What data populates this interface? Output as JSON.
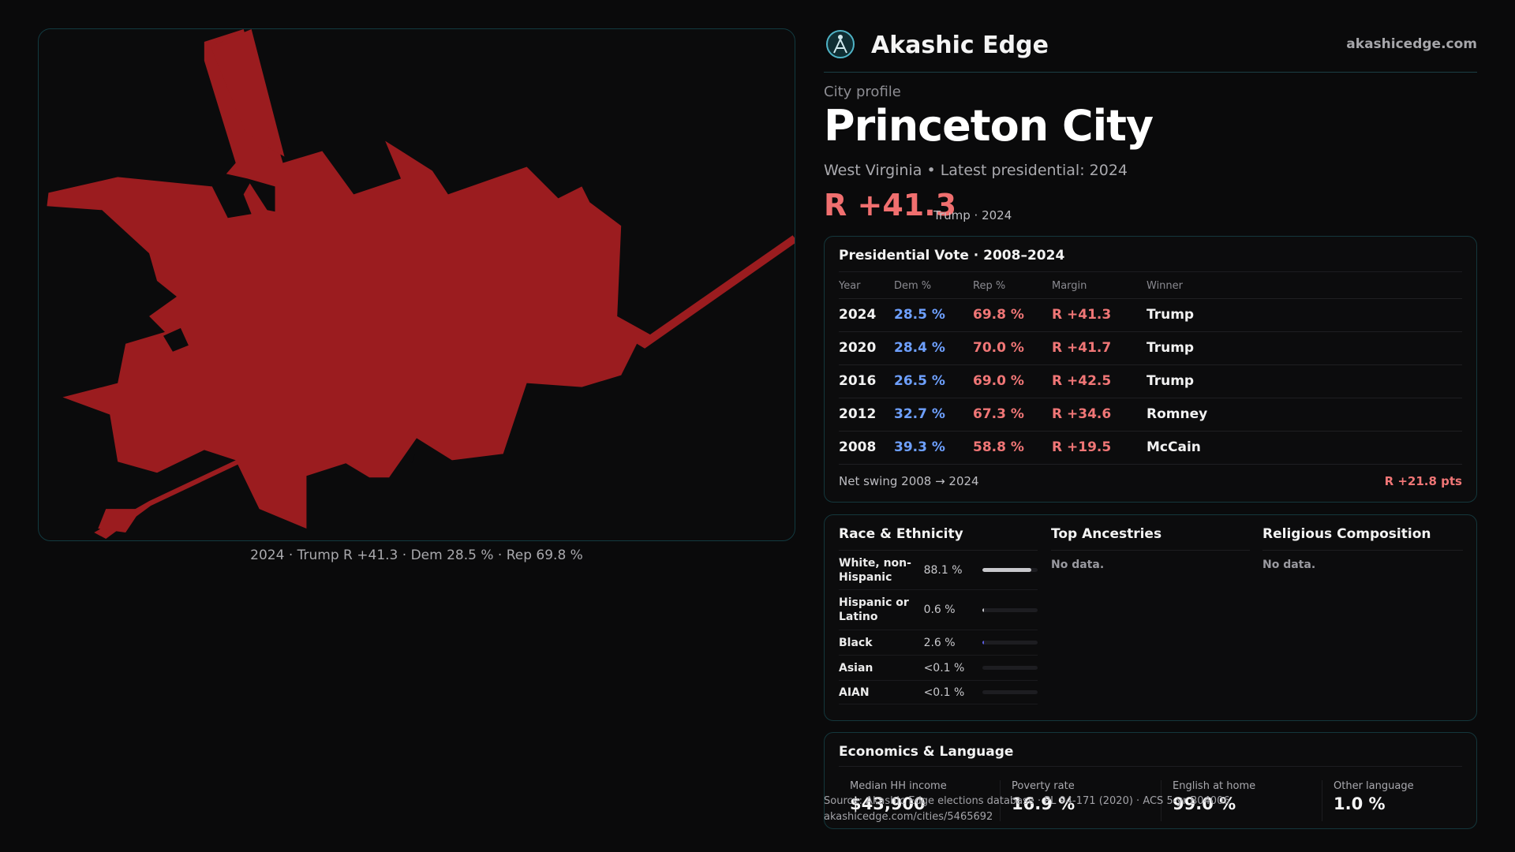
{
  "map": {
    "caption": "2024 · Trump R +41.3 · Dem 28.5 % · Rep 69.8 %",
    "fill_color": "#9b1c1f"
  },
  "brand": {
    "name": "Akashic Edge",
    "url": "akashicedge.com",
    "logo_icon": "globe-compass-icon"
  },
  "profile": {
    "kicker": "City profile",
    "city": "Princeton City",
    "state": "West Virginia",
    "latest": "Latest presidential: 2024",
    "margin": "R +41.3",
    "margin_note": "Trump · 2024",
    "margin_color": "#f06f6f"
  },
  "vote": {
    "title": "Presidential Vote · 2008–2024",
    "headers": {
      "year": "Year",
      "dem": "Dem %",
      "rep": "Rep %",
      "margin": "Margin",
      "winner": "Winner"
    },
    "rows": [
      {
        "year": "2024",
        "dem": "28.5 %",
        "rep": "69.8 %",
        "margin": "R +41.3",
        "winner": "Trump"
      },
      {
        "year": "2020",
        "dem": "28.4 %",
        "rep": "70.0 %",
        "margin": "R +41.7",
        "winner": "Trump"
      },
      {
        "year": "2016",
        "dem": "26.5 %",
        "rep": "69.0 %",
        "margin": "R +42.5",
        "winner": "Trump"
      },
      {
        "year": "2012",
        "dem": "32.7 %",
        "rep": "67.3 %",
        "margin": "R +34.6",
        "winner": "Romney"
      },
      {
        "year": "2008",
        "dem": "39.3 %",
        "rep": "58.8 %",
        "margin": "R +19.5",
        "winner": "McCain"
      }
    ],
    "swing_label": "Net swing 2008 → 2024",
    "swing_value": "R +21.8 pts",
    "dem_color": "#6ea0ff",
    "rep_color": "#f07676"
  },
  "demographics": {
    "race": {
      "title": "Race & Ethnicity",
      "rows": [
        {
          "label": "White, non-Hispanic",
          "value": "88.1 %",
          "fraction": 0.881
        },
        {
          "label": "Hispanic or Latino",
          "value": "0.6 %",
          "fraction": 0.006
        },
        {
          "label": "Black",
          "value": "2.6 %",
          "fraction": 0.026
        },
        {
          "label": "Asian",
          "value": "<0.1 %",
          "fraction": 0.0
        },
        {
          "label": "AIAN",
          "value": "<0.1 %",
          "fraction": 0.0
        }
      ]
    },
    "ancestries": {
      "title": "Top Ancestries",
      "empty": "No data."
    },
    "religion": {
      "title": "Religious Composition",
      "empty": "No data."
    }
  },
  "economics": {
    "title": "Economics & Language",
    "stats": [
      {
        "label": "Median HH income",
        "value": "$43,900"
      },
      {
        "label": "Poverty rate",
        "value": "16.9 %"
      },
      {
        "label": "English at home",
        "value": "99.0 %"
      },
      {
        "label": "Other language",
        "value": "1.0 %"
      }
    ]
  },
  "source": {
    "line1": "Source: Akashic Edge elections database · PL 94-171 (2020) · ACS 5-yr B04006",
    "line2": "akashicedge.com/cities/5465692"
  }
}
